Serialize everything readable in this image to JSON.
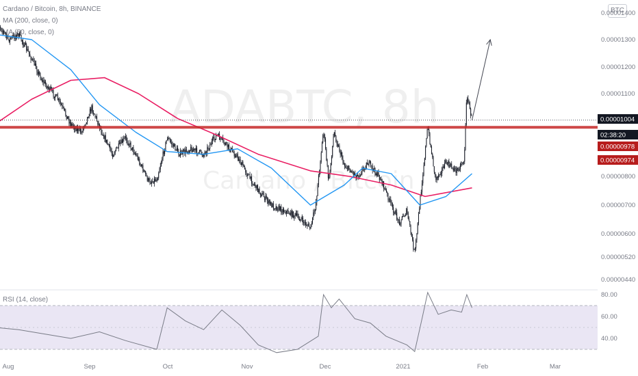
{
  "header": {
    "symbol_line": "Cardano / Bitcoin, 8h, BINANCE",
    "ma200_label": "MA (200, close, 0)",
    "ma50_label": "MA (50, close, 0)"
  },
  "watermark": {
    "symbol": "ADABTC, 8h",
    "description": "Cardano / Bitcoin"
  },
  "currency_badge": "BTC",
  "rsi_label": "RSI (14, close)",
  "colors": {
    "candle_body": "#131722",
    "ma50": "#2196f3",
    "ma200": "#e91e63",
    "support_line": "#c62828",
    "price_tag": "#131722",
    "level_tag": "#b71c1c",
    "rsi_line": "#787b86",
    "rsi_band": "#e1dcf0",
    "grid_dash": "#b2b5be"
  },
  "price_tags": {
    "last": "0.00001004",
    "countdown": "02:38:20",
    "level1": "0.00000978",
    "level2": "0.00000974"
  },
  "chart_data": {
    "type": "candlestick",
    "symbol": "Cardano / Bitcoin, 8h, BINANCE",
    "price_axis_ticks": [
      "0.00001400",
      "0.00001300",
      "0.00001200",
      "0.00001100",
      "0.00000800",
      "0.00000700",
      "0.00000600",
      "0.00000520",
      "0.00000440"
    ],
    "time_axis_ticks": [
      "Aug",
      "Sep",
      "Oct",
      "Nov",
      "Dec",
      "2021",
      "Feb",
      "Mar"
    ],
    "last_price": 1.004e-05,
    "support_level": 9.78e-06,
    "rsi_ticks": [
      "80.00",
      "60.00",
      "40.00"
    ],
    "rsi_band": [
      30,
      70
    ],
    "rsi_range": [
      25,
      85
    ],
    "close_path": [
      [
        "2020-07-27",
        1.38e-05
      ],
      [
        "2020-08-01",
        1.3e-05
      ],
      [
        "2020-08-05",
        1.32e-05
      ],
      [
        "2020-08-10",
        1.23e-05
      ],
      [
        "2020-08-14",
        1.15e-05
      ],
      [
        "2020-08-20",
        1.08e-05
      ],
      [
        "2020-08-25",
        9.9e-06
      ],
      [
        "2020-08-29",
        9.6e-06
      ],
      [
        "2020-09-02",
        1.05e-05
      ],
      [
        "2020-09-06",
        9.6e-06
      ],
      [
        "2020-09-10",
        8.8e-06
      ],
      [
        "2020-09-15",
        9.4e-06
      ],
      [
        "2020-09-19",
        8.8e-06
      ],
      [
        "2020-09-24",
        7.8e-06
      ],
      [
        "2020-09-27",
        7.9e-06
      ],
      [
        "2020-10-01",
        9.4e-06
      ],
      [
        "2020-10-06",
        8.8e-06
      ],
      [
        "2020-10-10",
        9e-06
      ],
      [
        "2020-10-15",
        8.8e-06
      ],
      [
        "2020-10-20",
        9.5e-06
      ],
      [
        "2020-10-24",
        9.1e-06
      ],
      [
        "2020-10-28",
        8.7e-06
      ],
      [
        "2020-11-02",
        7.9e-06
      ],
      [
        "2020-11-06",
        7.4e-06
      ],
      [
        "2020-11-10",
        7e-06
      ],
      [
        "2020-11-15",
        6.8e-06
      ],
      [
        "2020-11-20",
        6.6e-06
      ],
      [
        "2020-11-25",
        6.2e-06
      ],
      [
        "2020-11-27",
        7e-06
      ],
      [
        "2020-11-30",
        9.7e-06
      ],
      [
        "2020-12-02",
        7.8e-06
      ],
      [
        "2020-12-04",
        9.6e-06
      ],
      [
        "2020-12-08",
        8.4e-06
      ],
      [
        "2020-12-13",
        8e-06
      ],
      [
        "2020-12-17",
        8.5e-06
      ],
      [
        "2020-12-22",
        7.9e-06
      ],
      [
        "2020-12-26",
        7e-06
      ],
      [
        "2020-12-29",
        6.4e-06
      ],
      [
        "2021-01-01",
        6.8e-06
      ],
      [
        "2021-01-04",
        5.3e-06
      ],
      [
        "2021-01-07",
        8e-06
      ],
      [
        "2021-01-09",
        9.8e-06
      ],
      [
        "2021-01-12",
        7.9e-06
      ],
      [
        "2021-01-16",
        8.5e-06
      ],
      [
        "2021-01-20",
        8.2e-06
      ],
      [
        "2021-01-23",
        8.6e-06
      ],
      [
        "2021-01-24",
        1.1e-05
      ],
      [
        "2021-01-26",
        1.004e-05
      ]
    ],
    "ma50_path": [
      [
        "2020-07-27",
        1.32e-05
      ],
      [
        "2020-08-10",
        1.3e-05
      ],
      [
        "2020-08-25",
        1.19e-05
      ],
      [
        "2020-09-05",
        1.06e-05
      ],
      [
        "2020-09-19",
        9.6e-06
      ],
      [
        "2020-10-01",
        8.9e-06
      ],
      [
        "2020-10-15",
        8.8e-06
      ],
      [
        "2020-10-28",
        9e-06
      ],
      [
        "2020-11-10",
        8.3e-06
      ],
      [
        "2020-11-25",
        7e-06
      ],
      [
        "2020-12-08",
        7.7e-06
      ],
      [
        "2020-12-15",
        8.3e-06
      ],
      [
        "2020-12-26",
        8.1e-06
      ],
      [
        "2021-01-06",
        7e-06
      ],
      [
        "2021-01-16",
        7.3e-06
      ],
      [
        "2021-01-26",
        8.1e-06
      ]
    ],
    "ma200_path": [
      [
        "2020-07-27",
        9.9e-06
      ],
      [
        "2020-08-10",
        1.08e-05
      ],
      [
        "2020-08-25",
        1.15e-05
      ],
      [
        "2020-09-07",
        1.16e-05
      ],
      [
        "2020-09-20",
        1.1e-05
      ],
      [
        "2020-10-05",
        1.01e-05
      ],
      [
        "2020-10-20",
        9.5e-06
      ],
      [
        "2020-11-05",
        8.8e-06
      ],
      [
        "2020-11-25",
        8.2e-06
      ],
      [
        "2020-12-10",
        8e-06
      ],
      [
        "2020-12-26",
        7.7e-06
      ],
      [
        "2021-01-08",
        7.3e-06
      ],
      [
        "2021-01-26",
        7.6e-06
      ]
    ],
    "rsi_path": [
      [
        "2020-07-27",
        50
      ],
      [
        "2020-08-05",
        48
      ],
      [
        "2020-08-15",
        44
      ],
      [
        "2020-08-25",
        40
      ],
      [
        "2020-09-05",
        46
      ],
      [
        "2020-09-15",
        38
      ],
      [
        "2020-09-27",
        30
      ],
      [
        "2020-10-01",
        68
      ],
      [
        "2020-10-08",
        56
      ],
      [
        "2020-10-15",
        48
      ],
      [
        "2020-10-22",
        66
      ],
      [
        "2020-10-29",
        52
      ],
      [
        "2020-11-05",
        34
      ],
      [
        "2020-11-12",
        27
      ],
      [
        "2020-11-20",
        30
      ],
      [
        "2020-11-28",
        42
      ],
      [
        "2020-11-30",
        80
      ],
      [
        "2020-12-03",
        68
      ],
      [
        "2020-12-06",
        76
      ],
      [
        "2020-12-12",
        58
      ],
      [
        "2020-12-18",
        54
      ],
      [
        "2020-12-24",
        42
      ],
      [
        "2021-01-01",
        34
      ],
      [
        "2021-01-04",
        28
      ],
      [
        "2021-01-07",
        60
      ],
      [
        "2021-01-09",
        82
      ],
      [
        "2021-01-13",
        62
      ],
      [
        "2021-01-18",
        66
      ],
      [
        "2021-01-22",
        64
      ],
      [
        "2021-01-24",
        80
      ],
      [
        "2021-01-26",
        68
      ]
    ],
    "projection_arrow": [
      [
        "2021-01-26",
        1.004e-05
      ],
      [
        "2021-02-02",
        1.3e-05
      ]
    ]
  }
}
